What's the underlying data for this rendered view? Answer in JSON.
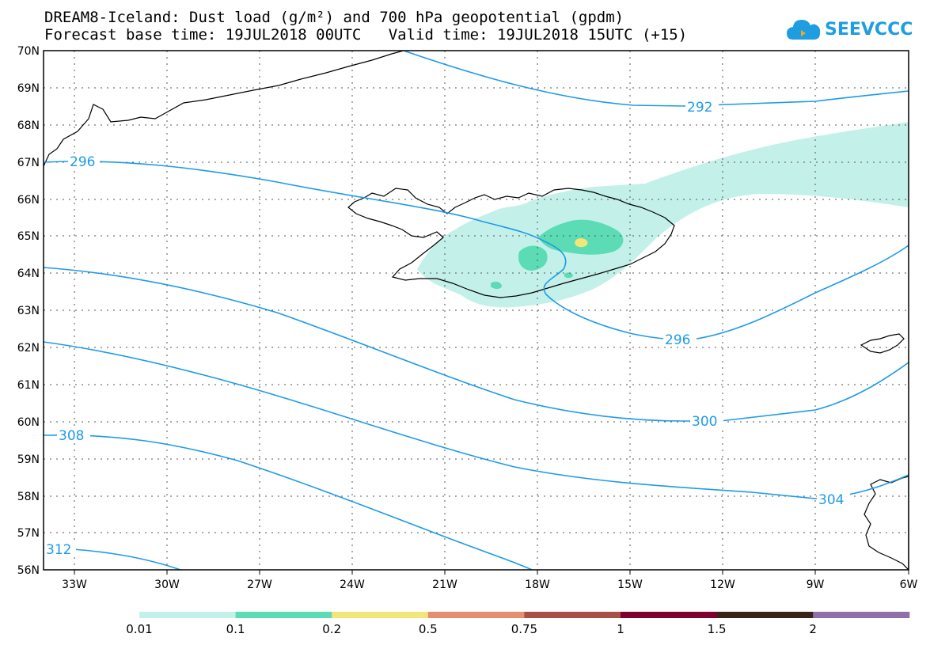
{
  "title": {
    "line1": "DREAM8-Iceland: Dust load (g/m²) and 700 hPa geopotential (gpdm)",
    "forecast_base": "Forecast base time: 19JUL2018 00UTC",
    "valid_time": "Valid time: 19JUL2018 15UTC (+15)"
  },
  "logo": {
    "text": "SEEVCCC",
    "icon": "cloud-icon"
  },
  "map": {
    "lat_labels": [
      "70N",
      "69N",
      "68N",
      "67N",
      "66N",
      "65N",
      "64N",
      "63N",
      "62N",
      "61N",
      "60N",
      "59N",
      "58N",
      "57N",
      "56N"
    ],
    "lon_labels": [
      "33W",
      "30W",
      "27W",
      "24W",
      "21W",
      "18W",
      "15W",
      "12W",
      "9W",
      "6W"
    ],
    "contour_labels": [
      "292",
      "296",
      "296",
      "300",
      "304",
      "308",
      "312"
    ],
    "contour_color": "#1e9be8",
    "dust_colors": {
      "level1": "#c4f0ea",
      "level2": "#5cdcb4",
      "level3": "#f2e678"
    }
  },
  "colorbar": {
    "labels": [
      "0.01",
      "0.1",
      "0.2",
      "0.5",
      "0.75",
      "1",
      "1.5",
      "2"
    ],
    "colors": [
      "#c4f0ea",
      "#5cdcb4",
      "#f2e678",
      "#e49070",
      "#a85048",
      "#800030",
      "#3a2418",
      "#9070a8"
    ]
  }
}
